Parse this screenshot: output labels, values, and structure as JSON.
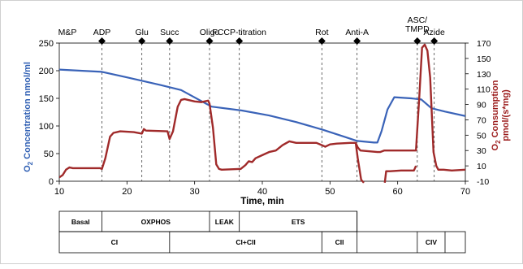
{
  "chart_data": {
    "type": "line",
    "xlabel": "Time, min",
    "xlim": [
      10,
      70
    ],
    "x_ticks": [
      10,
      20,
      30,
      40,
      50,
      60,
      70
    ],
    "ylabel_left": [
      "O",
      "2",
      " Concentration nmol/ml"
    ],
    "ylim_left": [
      0,
      250
    ],
    "y_ticks_left": [
      0,
      50,
      100,
      150,
      200,
      250
    ],
    "ylabel_right": [
      "O",
      "2",
      " Consumption",
      "pmol/(s*mg)"
    ],
    "ylim_right": [
      -10,
      170
    ],
    "y_ticks_right": [
      -10,
      10,
      30,
      50,
      70,
      90,
      110,
      130,
      150,
      170
    ],
    "colors": {
      "concentration": "#3a63b8",
      "consumption": "#a02a2a"
    },
    "events": [
      {
        "label": "M&P",
        "x": 11.2,
        "marker": false,
        "line": false
      },
      {
        "label": "ADP",
        "x": 16.3,
        "marker": true,
        "line": true
      },
      {
        "label": "Glu",
        "x": 22.2,
        "marker": true,
        "line": true
      },
      {
        "label": "Succ",
        "x": 26.3,
        "marker": true,
        "line": true
      },
      {
        "label": "Oligo",
        "x": 32.2,
        "marker": true,
        "line": true
      },
      {
        "label": "FCCP-titration",
        "x": 36.6,
        "marker": true,
        "line": true
      },
      {
        "label": "Rot",
        "x": 48.8,
        "marker": true,
        "line": true
      },
      {
        "label": "Anti-A",
        "x": 54,
        "marker": true,
        "line": true
      },
      {
        "label": [
          "ASC/",
          "TMPD"
        ],
        "x": 62.9,
        "marker": true,
        "line": true
      },
      {
        "label": "Azide",
        "x": 65.4,
        "marker": true,
        "line": true
      }
    ],
    "series": [
      {
        "key": "concentration",
        "axis": "left",
        "x": [
          10,
          16.3,
          20,
          25,
          28,
          32.5,
          37,
          41,
          45,
          49,
          52,
          54,
          56.5,
          57,
          57.6,
          58.5,
          59.5,
          62,
          63.5,
          65,
          67,
          70
        ],
        "y": [
          202,
          198,
          188,
          174,
          165,
          135,
          128,
          119,
          107,
          93,
          81,
          73,
          70,
          70,
          90,
          130,
          152,
          150,
          148,
          132,
          126,
          118
        ]
      },
      {
        "key": "consumption",
        "axis": "right",
        "x": [
          10,
          10.5,
          11,
          11.5,
          12,
          16,
          16.3,
          16.8,
          17.5,
          18,
          18.5,
          19,
          21,
          22.2,
          22.5,
          22.8,
          26,
          26.3,
          26.8,
          27.5,
          28,
          28.5,
          30,
          31,
          32,
          32.2,
          32.7,
          33.2,
          33.6,
          34,
          36.5,
          36.8,
          37.5,
          38,
          38.5,
          39,
          40,
          41,
          42,
          43,
          44,
          45,
          48,
          48.8,
          49.3,
          50,
          51,
          53,
          53.8,
          54.1,
          54.5,
          57,
          57.4,
          58,
          60,
          62.5,
          62.7,
          63.2,
          63.6,
          64,
          64.4,
          64.8,
          65.3,
          65.7,
          66,
          66.3,
          66.8,
          68,
          70
        ],
        "y": [
          -5,
          -2,
          5,
          8,
          7,
          7,
          6,
          20,
          48,
          53,
          54,
          55,
          54,
          52,
          58,
          56,
          55,
          45,
          55,
          87,
          96,
          97,
          94,
          93,
          95,
          91,
          60,
          12,
          6,
          5,
          6,
          6,
          11,
          16,
          15,
          20,
          24,
          28,
          30,
          37,
          42,
          40,
          40,
          37,
          35,
          38,
          39,
          40,
          40,
          34,
          30,
          28,
          28,
          30,
          30,
          30,
          30,
          100,
          164,
          168,
          160,
          125,
          28,
          10,
          5,
          5,
          5,
          4,
          5
        ],
        "gaps": [
          {
            "x": [
              53.8,
              54.1,
              54.6,
              55
            ],
            "y": [
              40,
              20,
              -8,
              -12
            ]
          },
          {
            "x": [
              58.1,
              58.3,
              58.9,
              60.5,
              62.4,
              62.7
            ],
            "y": [
              -12,
              3,
              3,
              4,
              4,
              10
            ]
          }
        ]
      }
    ]
  },
  "table": {
    "row1": [
      {
        "label": "Basal",
        "from": 10,
        "to": 16.3
      },
      {
        "label": "OXPHOS",
        "from": 16.3,
        "to": 32.2
      },
      {
        "label": "LEAK",
        "from": 32.2,
        "to": 36.6
      },
      {
        "label": "ETS",
        "from": 36.6,
        "to": 54
      }
    ],
    "row2": [
      {
        "label": "CI",
        "from": 10,
        "to": 26.3
      },
      {
        "label": "CI+CII",
        "from": 26.3,
        "to": 48.8
      },
      {
        "label": "CII",
        "from": 48.8,
        "to": 54
      },
      {
        "label": "",
        "from": 54,
        "to": 62.9
      },
      {
        "label": "CIV",
        "from": 62.9,
        "to": 67
      }
    ]
  }
}
